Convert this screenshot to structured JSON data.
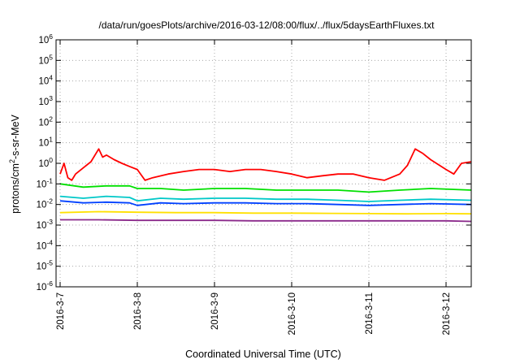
{
  "chart_data": {
    "type": "line",
    "title": "/data/run/goesPlots/archive/2016-03-12/08:00/flux/../flux/5daysEarthFluxes.txt",
    "xlabel": "Coordinated Universal Time (UTC)",
    "ylabel": "protons/cm²-s-sr-MeV",
    "ylabel_parts": {
      "pre": "protons/cm",
      "sup": "2",
      "post": "-s-sr-MeV"
    },
    "yscale": "log",
    "ylim": [
      1e-06,
      1000000.0
    ],
    "y_ticks": [
      {
        "exp": "-6"
      },
      {
        "exp": "-5"
      },
      {
        "exp": "-4"
      },
      {
        "exp": "-3"
      },
      {
        "exp": "-2"
      },
      {
        "exp": "-1"
      },
      {
        "exp": "0"
      },
      {
        "exp": "1"
      },
      {
        "exp": "2"
      },
      {
        "exp": "3"
      },
      {
        "exp": "4"
      },
      {
        "exp": "5"
      },
      {
        "exp": "6"
      }
    ],
    "y_tick_base": "10",
    "xlim": [
      "2016-03-07 00:00",
      "2016-03-12 08:00"
    ],
    "x_ticks": [
      "2016-3-7",
      "2016-3-8",
      "2016-3-9",
      "2016-3-10",
      "2016-3-11",
      "2016-3-12"
    ],
    "grid": true,
    "x_unit": "days since 2016-03-07 00:00 UTC",
    "series": [
      {
        "color": "#ff0000",
        "x": [
          0,
          0.05,
          0.1,
          0.15,
          0.2,
          0.3,
          0.4,
          0.5,
          0.55,
          0.6,
          0.7,
          0.8,
          0.9,
          1.0,
          1.1,
          1.2,
          1.4,
          1.6,
          1.8,
          2.0,
          2.2,
          2.4,
          2.6,
          2.8,
          3.0,
          3.2,
          3.4,
          3.6,
          3.8,
          4.0,
          4.2,
          4.4,
          4.5,
          4.6,
          4.7,
          4.8,
          5.0,
          5.1,
          5.2,
          5.33
        ],
        "y": [
          0.3,
          1.0,
          0.2,
          0.15,
          0.3,
          0.6,
          1.2,
          5.0,
          2.0,
          2.5,
          1.5,
          1.0,
          0.7,
          0.5,
          0.15,
          0.2,
          0.3,
          0.4,
          0.5,
          0.5,
          0.4,
          0.5,
          0.5,
          0.4,
          0.3,
          0.2,
          0.25,
          0.3,
          0.3,
          0.2,
          0.15,
          0.3,
          0.8,
          5.0,
          3.0,
          1.5,
          0.5,
          0.3,
          1.0,
          1.2
        ]
      },
      {
        "color": "#00e000",
        "x": [
          0,
          0.3,
          0.6,
          0.9,
          1.0,
          1.3,
          1.6,
          2.0,
          2.4,
          2.8,
          3.2,
          3.6,
          4.0,
          4.4,
          4.8,
          5.33
        ],
        "y": [
          0.1,
          0.07,
          0.08,
          0.08,
          0.06,
          0.06,
          0.05,
          0.06,
          0.06,
          0.05,
          0.05,
          0.05,
          0.04,
          0.05,
          0.06,
          0.05
        ]
      },
      {
        "color": "#00c8c8",
        "x": [
          0,
          0.3,
          0.6,
          0.9,
          1.0,
          1.3,
          1.6,
          2.0,
          2.4,
          2.8,
          3.2,
          3.6,
          4.0,
          4.4,
          4.8,
          5.33
        ],
        "y": [
          0.025,
          0.02,
          0.025,
          0.022,
          0.015,
          0.02,
          0.018,
          0.02,
          0.02,
          0.018,
          0.018,
          0.016,
          0.014,
          0.016,
          0.018,
          0.016
        ]
      },
      {
        "color": "#0040ff",
        "x": [
          0,
          0.3,
          0.6,
          0.9,
          1.0,
          1.3,
          1.6,
          2.0,
          2.4,
          2.8,
          3.2,
          3.6,
          4.0,
          4.4,
          4.8,
          5.33
        ],
        "y": [
          0.015,
          0.012,
          0.013,
          0.012,
          0.009,
          0.012,
          0.011,
          0.012,
          0.012,
          0.011,
          0.011,
          0.01,
          0.009,
          0.01,
          0.011,
          0.01
        ]
      },
      {
        "color": "#ffe000",
        "x": [
          0,
          0.5,
          1.0,
          1.5,
          2.0,
          2.5,
          3.0,
          3.5,
          4.0,
          4.5,
          5.0,
          5.33
        ],
        "y": [
          0.004,
          0.0045,
          0.0042,
          0.004,
          0.004,
          0.0038,
          0.0038,
          0.0037,
          0.0036,
          0.0035,
          0.0036,
          0.0035
        ]
      },
      {
        "color": "#8b2a8b",
        "x": [
          0,
          0.5,
          1.0,
          1.5,
          2.0,
          2.5,
          3.0,
          3.5,
          4.0,
          4.5,
          5.0,
          5.33
        ],
        "y": [
          0.0018,
          0.0018,
          0.0017,
          0.0017,
          0.0017,
          0.0016,
          0.0016,
          0.0016,
          0.0016,
          0.0016,
          0.0016,
          0.0015
        ]
      }
    ]
  }
}
